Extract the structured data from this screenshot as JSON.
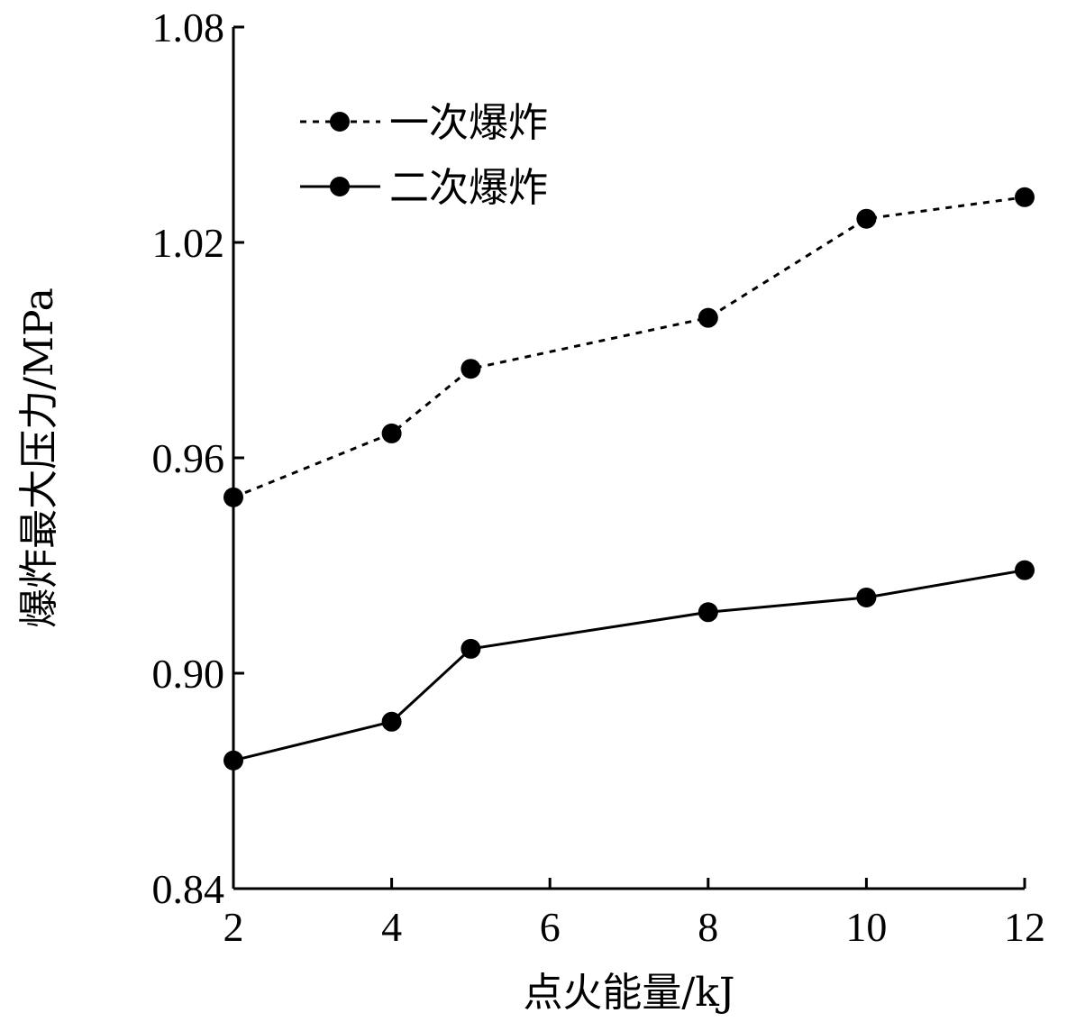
{
  "chart_data": {
    "type": "line",
    "x": [
      2,
      4,
      5,
      8,
      10,
      12
    ],
    "xlabel": "点火能量/kJ",
    "ylabel": "爆炸最大压力/MPa",
    "xlim": [
      2,
      12
    ],
    "ylim": [
      0.84,
      1.08
    ],
    "xticks": [
      "2",
      "4",
      "6",
      "8",
      "10",
      "12"
    ],
    "yticks": [
      "0.84",
      "0.90",
      "0.96",
      "1.02",
      "1.08"
    ],
    "grid": false,
    "legend_position": "upper-left",
    "series": [
      {
        "name": "一次爆炸",
        "style": "dotted",
        "color": "#000000",
        "values": [
          0.949,
          0.9668,
          0.9848,
          0.999,
          1.0266,
          1.0326
        ]
      },
      {
        "name": "二次爆炸",
        "style": "solid",
        "color": "#000000",
        "values": [
          0.8757,
          0.8865,
          0.9068,
          0.917,
          0.9211,
          0.9287
        ]
      }
    ]
  }
}
